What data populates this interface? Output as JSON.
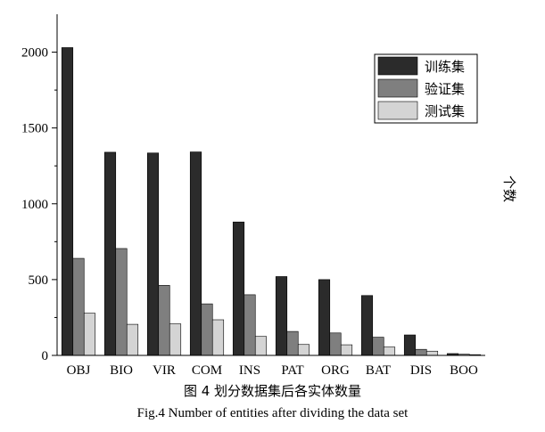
{
  "chart_data": {
    "type": "bar",
    "categories": [
      "OBJ",
      "BIO",
      "VIR",
      "COM",
      "INS",
      "PAT",
      "ORG",
      "BAT",
      "DIS",
      "BOO"
    ],
    "series": [
      {
        "name": "训练集",
        "color": "#2b2b2b",
        "values": [
          2030,
          1340,
          1335,
          1342,
          880,
          520,
          500,
          395,
          135,
          12
        ]
      },
      {
        "name": "验证集",
        "color": "#7f7f7f",
        "values": [
          640,
          705,
          462,
          340,
          400,
          158,
          148,
          120,
          40,
          8
        ]
      },
      {
        "name": "测试集",
        "color": "#d4d4d4",
        "values": [
          278,
          205,
          208,
          235,
          125,
          72,
          70,
          55,
          28,
          5
        ]
      }
    ],
    "yticks": [
      0,
      500,
      1000,
      1500,
      2000
    ],
    "ylim": [
      0,
      2250
    ],
    "ylabel": "个数",
    "legend_position": "top-right",
    "grid": false
  },
  "caption": {
    "chinese": "图 4  划分数据集后各实体数量",
    "english": "Fig.4 Number of entities after dividing the data set"
  }
}
